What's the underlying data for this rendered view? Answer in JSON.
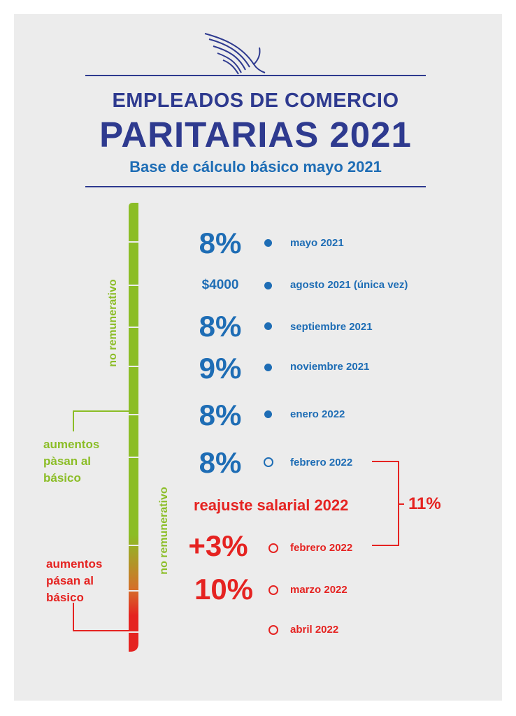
{
  "header": {
    "line1": "EMPLEADOS DE COMERCIO",
    "line2": "PARITARIAS 2021",
    "line3": "Base de cálculo básico mayo 2021",
    "logo_icon": "wing-icon"
  },
  "colors": {
    "navy": "#2e3a8f",
    "blue": "#1e6db5",
    "green": "#8bbd26",
    "red": "#e52321",
    "background": "#ececec"
  },
  "timeline": [
    {
      "value": "8%",
      "date": "mayo 2021",
      "color": "blue",
      "marker": "filled-dot"
    },
    {
      "value": "$4000",
      "date": "agosto 2021 (única vez)",
      "color": "blue",
      "marker": "filled-dot"
    },
    {
      "value": "8%",
      "date": "septiembre 2021",
      "color": "blue",
      "marker": "filled-dot"
    },
    {
      "value": "9%",
      "date": "noviembre 2021",
      "color": "blue",
      "marker": "filled-dot"
    },
    {
      "value": "8%",
      "date": "enero 2022",
      "color": "blue",
      "marker": "filled-dot"
    },
    {
      "value": "8%",
      "date": "febrero 2022",
      "color": "blue",
      "marker": "open-circle"
    },
    {
      "value": "+3%",
      "date": "febrero 2022",
      "color": "red",
      "marker": "open-circle"
    },
    {
      "value": "10%",
      "date": "marzo 2022",
      "color": "red",
      "marker": "open-circle"
    },
    {
      "value": "",
      "date": "abril 2022",
      "color": "red",
      "marker": "open-circle"
    }
  ],
  "reajuste": {
    "label": "reajuste salarial 2022",
    "total": "11%"
  },
  "side_labels": {
    "vertical_1": "no remunerativo",
    "vertical_2": "no remunerativo",
    "green_note": [
      "aumentos",
      "pàsan al",
      "básico"
    ],
    "red_note": [
      "aumentos",
      "pásan al",
      "básico"
    ]
  }
}
